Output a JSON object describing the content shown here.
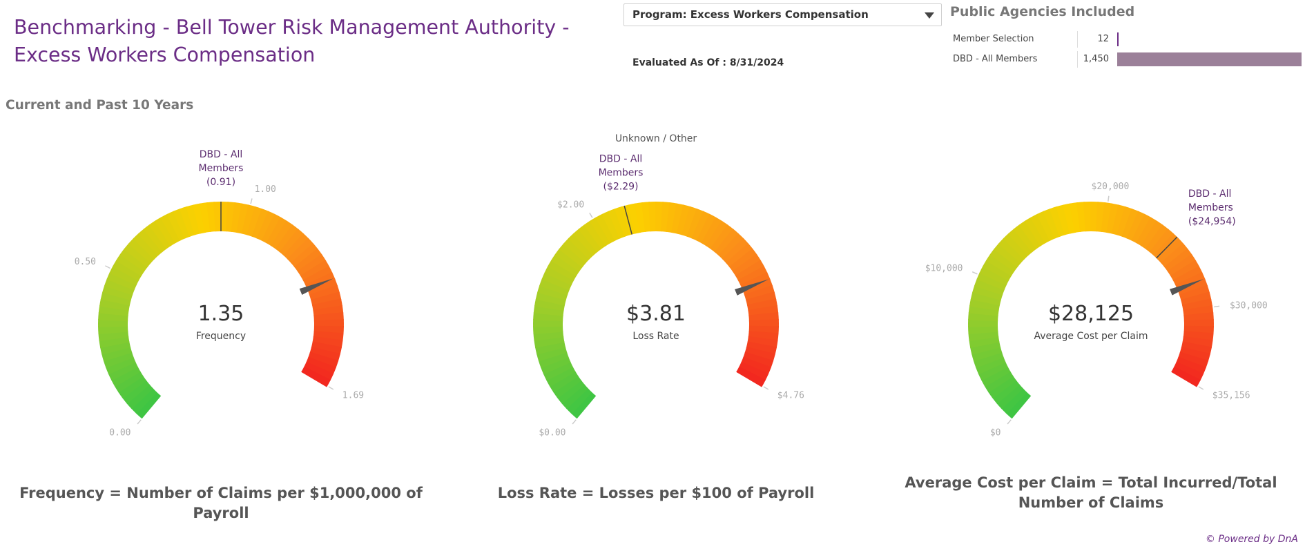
{
  "header": {
    "title": "Benchmarking - Bell Tower Risk Management Authority - Excess Workers Compensation",
    "program_select": "Program: Excess Workers Compensation",
    "evaluated_as_of": "Evaluated As Of : 8/31/2024"
  },
  "agencies": {
    "title": "Public Agencies Included",
    "rows": [
      {
        "name": "Member Selection",
        "count": "12",
        "value": 12
      },
      {
        "name": "DBD - All Members",
        "count": "1,450",
        "value": 1450
      }
    ],
    "max": 1450,
    "bar_color": "#9b8099"
  },
  "section_title": "Current and Past 10 Years",
  "chart_data": [
    {
      "type": "gauge",
      "title": "",
      "value": 1.35,
      "value_label": "1.35",
      "label": "Frequency",
      "min": 0,
      "max": 1.69,
      "ticks": [
        {
          "value": 0,
          "label": "0.00"
        },
        {
          "value": 0.5,
          "label": "0.50"
        },
        {
          "value": 1.0,
          "label": "1.00"
        },
        {
          "value": 1.69,
          "label": "1.69"
        }
      ],
      "reference": {
        "value": 0.91,
        "label": [
          "DBD - All",
          "Members",
          "(0.91)"
        ]
      }
    },
    {
      "type": "gauge",
      "title": "Unknown / Other",
      "value": 3.81,
      "value_label": "$3.81",
      "label": "Loss Rate",
      "min": 0,
      "max": 4.76,
      "ticks": [
        {
          "value": 0,
          "label": "$0.00"
        },
        {
          "value": 2.0,
          "label": "$2.00"
        },
        {
          "value": 4.76,
          "label": "$4.76"
        }
      ],
      "reference": {
        "value": 2.29,
        "label": [
          "DBD - All",
          "Members",
          "($2.29)"
        ]
      }
    },
    {
      "type": "gauge",
      "title": "",
      "value": 28125,
      "value_label": "$28,125",
      "label": "Average Cost per Claim",
      "min": 0,
      "max": 35156,
      "ticks": [
        {
          "value": 0,
          "label": "$0"
        },
        {
          "value": 10000,
          "label": "$10,000"
        },
        {
          "value": 20000,
          "label": "$20,000"
        },
        {
          "value": 30000,
          "label": "$30,000"
        },
        {
          "value": 35156,
          "label": "$35,156"
        }
      ],
      "reference": {
        "value": 24954,
        "label": [
          "DBD - All",
          "Members",
          "($24,954)"
        ]
      }
    }
  ],
  "formulas": [
    "Frequency = Number of Claims per $1,000,000 of Payroll",
    "Loss Rate = Losses per $100 of Payroll",
    "Average Cost per Claim = Total Incurred/Total Number of Claims"
  ],
  "footer": {
    "powered_by": "© Powered by DnA"
  },
  "colors": {
    "title": "#6b2d86",
    "gauge_start": "#3cc544",
    "gauge_mid": "#fcd000",
    "gauge_orange": "#fb8d1a",
    "gauge_end": "#f2261f",
    "needle": "#555555"
  }
}
